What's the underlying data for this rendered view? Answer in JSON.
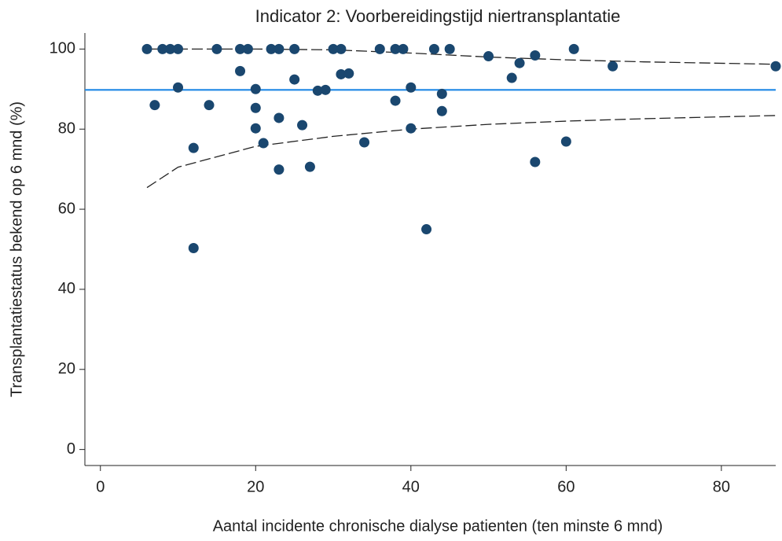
{
  "chart_data": {
    "type": "scatter",
    "title": "Indicator 2: Voorbereidingstijd niertransplantatie",
    "x_label": "Aantal incidente chronische dialyse patienten (ten minste 6 mnd)",
    "y_label": "Transplantatiestatus bekend op 6 mnd (%)",
    "xlim": [
      -2,
      87
    ],
    "ylim": [
      -4,
      104
    ],
    "xticks": [
      0,
      20,
      40,
      60,
      80
    ],
    "yticks": [
      0,
      20,
      40,
      60,
      80,
      100
    ],
    "series": [
      {
        "type": "scatter",
        "color": "#1a476f",
        "x": [
          6,
          7,
          8,
          9,
          10,
          10,
          12,
          12,
          14,
          15,
          18,
          18,
          19,
          20,
          20,
          20,
          21,
          22,
          23,
          23,
          23,
          25,
          25,
          26,
          27,
          28,
          29,
          30,
          31,
          31,
          32,
          34,
          36,
          38,
          38,
          39,
          40,
          40,
          42,
          43,
          44,
          44,
          45,
          50,
          53,
          54,
          56,
          56,
          60,
          61,
          66,
          87
        ],
        "values": [
          100,
          86,
          100,
          100,
          100,
          90.4,
          75.3,
          50.3,
          86,
          100,
          100,
          94.5,
          100,
          90,
          85.3,
          80.2,
          76.5,
          100,
          100,
          82.8,
          69.9,
          100,
          92.4,
          81,
          70.6,
          89.6,
          89.8,
          100,
          100,
          93.7,
          93.9,
          76.7,
          100,
          100,
          87.1,
          100,
          90.4,
          80.2,
          55,
          100,
          88.8,
          84.5,
          100,
          98.2,
          92.8,
          96.5,
          98.4,
          71.8,
          76.9,
          100,
          95.7,
          95.7
        ]
      },
      {
        "type": "line",
        "color": "#1e88e5",
        "dash": false,
        "x": [
          -2,
          87
        ],
        "values": [
          89.8,
          89.8
        ]
      },
      {
        "type": "line",
        "color": "#222222",
        "dash": true,
        "x": [
          6,
          10,
          20,
          30,
          40,
          50,
          60,
          70,
          87
        ],
        "values": [
          100,
          100,
          100,
          99.8,
          99,
          98,
          97.3,
          96.8,
          96.2
        ]
      },
      {
        "type": "line",
        "color": "#222222",
        "dash": true,
        "x": [
          6,
          10,
          20,
          30,
          40,
          50,
          60,
          70,
          87
        ],
        "values": [
          65.4,
          70.5,
          75.7,
          78.2,
          80,
          81.2,
          82,
          82.6,
          83.4
        ]
      }
    ]
  }
}
